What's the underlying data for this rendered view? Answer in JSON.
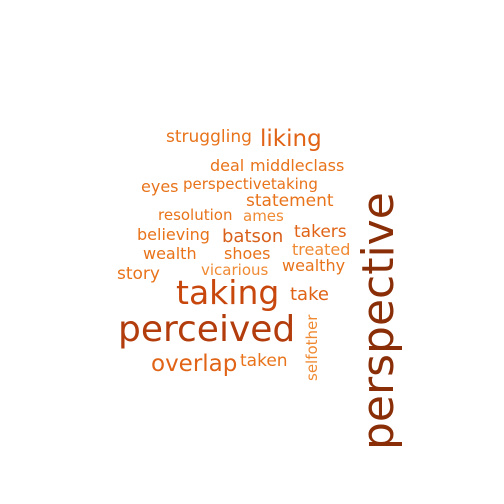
{
  "wordcloud": {
    "words": [
      {
        "text": "struggling",
        "color": "#e8731a"
      },
      {
        "text": "liking",
        "color": "#e06316"
      },
      {
        "text": "deal",
        "color": "#e8731a"
      },
      {
        "text": "middleclass",
        "color": "#e8731a"
      },
      {
        "text": "eyes",
        "color": "#e8731a"
      },
      {
        "text": "perspectivetaking",
        "color": "#e8731a"
      },
      {
        "text": "statement",
        "color": "#e8731a"
      },
      {
        "text": "resolution",
        "color": "#e8731a"
      },
      {
        "text": "ames",
        "color": "#ef8a33"
      },
      {
        "text": "believing",
        "color": "#e8731a"
      },
      {
        "text": "batson",
        "color": "#d9601a"
      },
      {
        "text": "takers",
        "color": "#e06316"
      },
      {
        "text": "treated",
        "color": "#ef8a33"
      },
      {
        "text": "wealth",
        "color": "#e8731a"
      },
      {
        "text": "shoes",
        "color": "#e8731a"
      },
      {
        "text": "wealthy",
        "color": "#e8731a"
      },
      {
        "text": "vicarious",
        "color": "#ef8a33"
      },
      {
        "text": "story",
        "color": "#e8731a"
      },
      {
        "text": "taking",
        "color": "#c8470d"
      },
      {
        "text": "take",
        "color": "#e06316"
      },
      {
        "text": "perceived",
        "color": "#b33c0c"
      },
      {
        "text": "selfother",
        "color": "#ef8a33"
      },
      {
        "text": "overlap",
        "color": "#e06316"
      },
      {
        "text": "taken",
        "color": "#e8731a"
      },
      {
        "text": "perspective",
        "color": "#8a2e07"
      }
    ]
  }
}
